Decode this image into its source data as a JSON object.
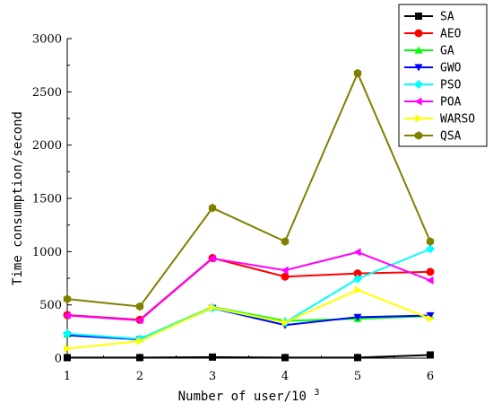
{
  "chart_data": {
    "type": "line",
    "x": [
      1,
      2,
      3,
      4,
      5,
      6
    ],
    "xlim": [
      1,
      6
    ],
    "ylim": [
      0,
      3000
    ],
    "x_ticks": [
      "1",
      "2",
      "3",
      "4",
      "5",
      "6"
    ],
    "y_ticks": [
      "0",
      "500",
      "1000",
      "1500",
      "2000",
      "2500",
      "3000"
    ],
    "xlabel_prefix": "Number of user/10",
    "xlabel_exponent": "3",
    "ylabel": "Time consumption/second",
    "legend_position": "top-right",
    "grid": false,
    "series": [
      {
        "name": "SA",
        "color": "#000000",
        "marker": "square",
        "values": [
          5,
          5,
          10,
          5,
          5,
          30
        ]
      },
      {
        "name": "AEO",
        "color": "#ff0000",
        "marker": "circle",
        "values": [
          405,
          360,
          940,
          765,
          795,
          810
        ]
      },
      {
        "name": "GA",
        "color": "#00ff00",
        "marker": "triangle-up",
        "values": [
          225,
          180,
          480,
          350,
          370,
          395
        ]
      },
      {
        "name": "GWO",
        "color": "#0000ff",
        "marker": "triangle-down",
        "values": [
          215,
          175,
          470,
          310,
          385,
          400
        ]
      },
      {
        "name": "PSO",
        "color": "#00ffff",
        "marker": "diamond",
        "values": [
          230,
          180,
          470,
          335,
          745,
          1025
        ]
      },
      {
        "name": "POA",
        "color": "#ff00ff",
        "marker": "triangle-left",
        "values": [
          400,
          355,
          935,
          825,
          995,
          730
        ]
      },
      {
        "name": "WARSO",
        "color": "#ffff00",
        "marker": "triangle-right",
        "values": [
          90,
          160,
          475,
          335,
          640,
          370
        ]
      },
      {
        "name": "QSA",
        "color": "#808000",
        "marker": "hexagon",
        "values": [
          555,
          485,
          1410,
          1095,
          2675,
          1095
        ]
      }
    ]
  }
}
